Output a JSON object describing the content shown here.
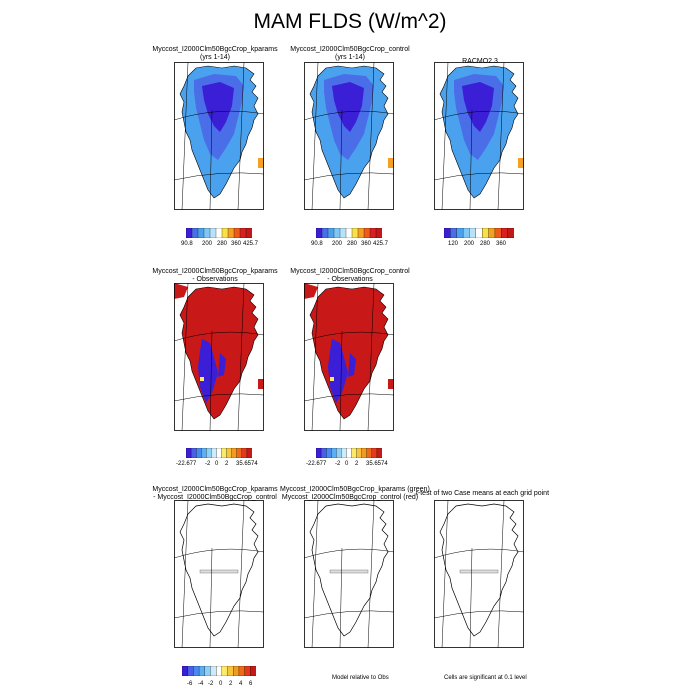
{
  "main_title": "MAM FLDS (W/m^2)",
  "panels": [
    {
      "title1": "Myccost_I2000Clm50BgcCrop_kparams",
      "title2": "(yrs 1-14)"
    },
    {
      "title1": "Myccost_I2000Clm50BgcCrop_control",
      "title2": "(yrs 1-14)"
    },
    {
      "title1": "RACMO2.3",
      "title2": ""
    },
    {
      "title1": "Myccost_I2000Clm50BgcCrop_kparams",
      "title2": "- Observations"
    },
    {
      "title1": "Myccost_I2000Clm50BgcCrop_control",
      "title2": "- Observations"
    },
    {
      "title1": "Myccost_I2000Clm50BgcCrop_kparams",
      "title2": "- Myccost_I2000Clm50BgcCrop_control"
    },
    {
      "title1": "Myccost_I2000Clm50BgcCrop_kparams (green)",
      "title2": "Myccost_I2000Clm50BgcCrop_control (red)"
    },
    {
      "title1": "t-test of two Case means at each grid point",
      "title2": ""
    }
  ],
  "notes": {
    "model_relative": "Model relative to Obs",
    "cells_significant": "Cells are significant at 0.1 level"
  },
  "colorbars": {
    "abs_case": {
      "ticks": [
        "90.8",
        "200",
        "280",
        "360",
        "425.7"
      ]
    },
    "abs_obs": {
      "ticks": [
        "120",
        "200",
        "280",
        "360"
      ]
    },
    "diff": {
      "ticks": [
        "-22.677",
        "-2",
        "0",
        "2",
        "35.6574"
      ]
    },
    "case_diff": {
      "ticks": [
        "-6",
        "-4",
        "-2",
        "0",
        "2",
        "4",
        "6"
      ]
    }
  },
  "chart_data": {
    "type": "heatmap",
    "title": "MAM FLDS (W/m^2)",
    "units": "W/m^2",
    "season": "MAM",
    "panels": [
      {
        "name": "Myccost_I2000Clm50BgcCrop_kparams (yrs 1-14)",
        "range": [
          90.8,
          425.7
        ],
        "tick_labels": [
          "90.8",
          "200",
          "280",
          "360",
          "425.7"
        ]
      },
      {
        "name": "Myccost_I2000Clm50BgcCrop_control (yrs 1-14)",
        "range": [
          90.8,
          425.7
        ],
        "tick_labels": [
          "90.8",
          "200",
          "280",
          "360",
          "425.7"
        ]
      },
      {
        "name": "RACMO2.3",
        "tick_labels": [
          "120",
          "200",
          "280",
          "360"
        ]
      },
      {
        "name": "Myccost_I2000Clm50BgcCrop_kparams - Observations",
        "range": [
          -22.677,
          35.6574
        ],
        "tick_labels": [
          "-22.677",
          "-2",
          "0",
          "2",
          "35.6574"
        ]
      },
      {
        "name": "Myccost_I2000Clm50BgcCrop_control - Observations",
        "range": [
          -22.677,
          35.6574
        ],
        "tick_labels": [
          "-22.677",
          "-2",
          "0",
          "2",
          "35.6574"
        ]
      },
      {
        "name": "Myccost_I2000Clm50BgcCrop_kparams - Myccost_I2000Clm50BgcCrop_control",
        "tick_labels": [
          "-6",
          "-4",
          "-2",
          "0",
          "2",
          "4",
          "6"
        ]
      }
    ],
    "colors": {
      "abs": [
        "#3a1fd6",
        "#4a6ee8",
        "#4aa2ee",
        "#7fc8f5",
        "#b8e2fa",
        "#ffffff",
        "#f7e04a",
        "#f4a020",
        "#ee5a1a",
        "#d82020",
        "#c21818"
      ],
      "diff": [
        "#3a1fd6",
        "#4a5ee8",
        "#4a8aee",
        "#5ab0f2",
        "#8fd0f6",
        "#cdebfb",
        "#ffffff",
        "#fbe96a",
        "#f7c43a",
        "#f49a22",
        "#ee6a1a",
        "#e23a1a",
        "#c81818"
      ]
    }
  }
}
